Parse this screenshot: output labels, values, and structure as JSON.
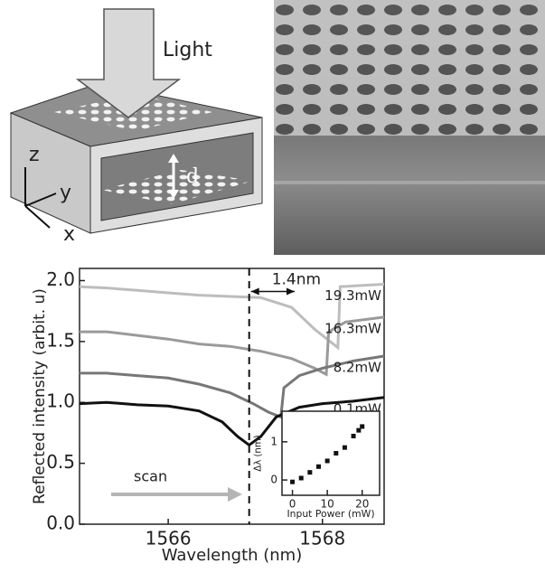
{
  "schematic": {
    "light": "Light",
    "axis_z": "z",
    "axis_y": "y",
    "axis_x": "x",
    "gap": "d"
  },
  "chart_data": [
    {
      "type": "line",
      "x_label": "Wavelength (nm)",
      "y_label": "Reflected intensity (arbit. u)",
      "xlim": [
        1564.85,
        1568.8
      ],
      "xticks": [
        1566,
        1568
      ],
      "ylim": [
        0,
        2.1
      ],
      "yticks": [
        {
          "value": 0,
          "label": "0.0"
        },
        0.5,
        {
          "value": 1,
          "label": "1.0"
        },
        1.5,
        {
          "value": 2,
          "label": "2.0"
        }
      ],
      "vline": 1567.05,
      "shift_label": "1.4nm",
      "scan_label": "scan",
      "series": [
        {
          "name": "19.3mW",
          "color": "#bdbdbd",
          "x": [
            1564.85,
            1565.2,
            1565.6,
            1566.0,
            1566.4,
            1566.8,
            1567.2,
            1567.6,
            1567.9,
            1568.2,
            1568.23,
            1568.5,
            1568.8
          ],
          "values": [
            1.95,
            1.94,
            1.92,
            1.9,
            1.88,
            1.87,
            1.86,
            1.78,
            1.6,
            1.45,
            1.95,
            1.96,
            1.97
          ]
        },
        {
          "name": "16.3mW",
          "color": "#9a9a9a",
          "x": [
            1564.85,
            1565.2,
            1565.6,
            1566.0,
            1566.4,
            1566.8,
            1567.2,
            1567.6,
            1567.9,
            1568.05,
            1568.08,
            1568.3,
            1568.8
          ],
          "values": [
            1.58,
            1.58,
            1.55,
            1.52,
            1.48,
            1.46,
            1.42,
            1.36,
            1.28,
            1.23,
            1.58,
            1.66,
            1.7
          ]
        },
        {
          "name": "8.2mW",
          "color": "#777777",
          "x": [
            1564.85,
            1565.2,
            1565.6,
            1566.0,
            1566.4,
            1566.8,
            1567.1,
            1567.3,
            1567.46,
            1567.5,
            1567.7,
            1568.0,
            1568.4,
            1568.8
          ],
          "values": [
            1.24,
            1.24,
            1.22,
            1.2,
            1.15,
            1.08,
            0.99,
            0.92,
            0.88,
            1.12,
            1.22,
            1.28,
            1.34,
            1.38
          ]
        },
        {
          "name": "0.1mW",
          "color": "#111111",
          "x": [
            1564.85,
            1565.2,
            1565.6,
            1566.0,
            1566.4,
            1566.7,
            1566.9,
            1567.05,
            1567.2,
            1567.4,
            1567.7,
            1568.0,
            1568.4,
            1568.8
          ],
          "values": [
            0.99,
            1.0,
            0.98,
            0.97,
            0.93,
            0.84,
            0.72,
            0.65,
            0.72,
            0.88,
            0.96,
            0.99,
            1.01,
            1.04
          ]
        }
      ]
    },
    {
      "type": "scatter",
      "x_label": "Input Power (mW)",
      "y_label": "Δλ (nm)",
      "xlim": [
        -3,
        25
      ],
      "xticks": [
        0,
        10,
        20
      ],
      "ylim": [
        -0.4,
        1.8
      ],
      "yticks": [
        0,
        1
      ],
      "color": "#111111",
      "x": [
        0,
        2.5,
        5,
        7.5,
        10,
        12.5,
        15,
        17.5,
        19,
        20
      ],
      "values": [
        -0.05,
        0.05,
        0.2,
        0.35,
        0.5,
        0.7,
        0.85,
        1.15,
        1.3,
        1.4
      ]
    }
  ]
}
